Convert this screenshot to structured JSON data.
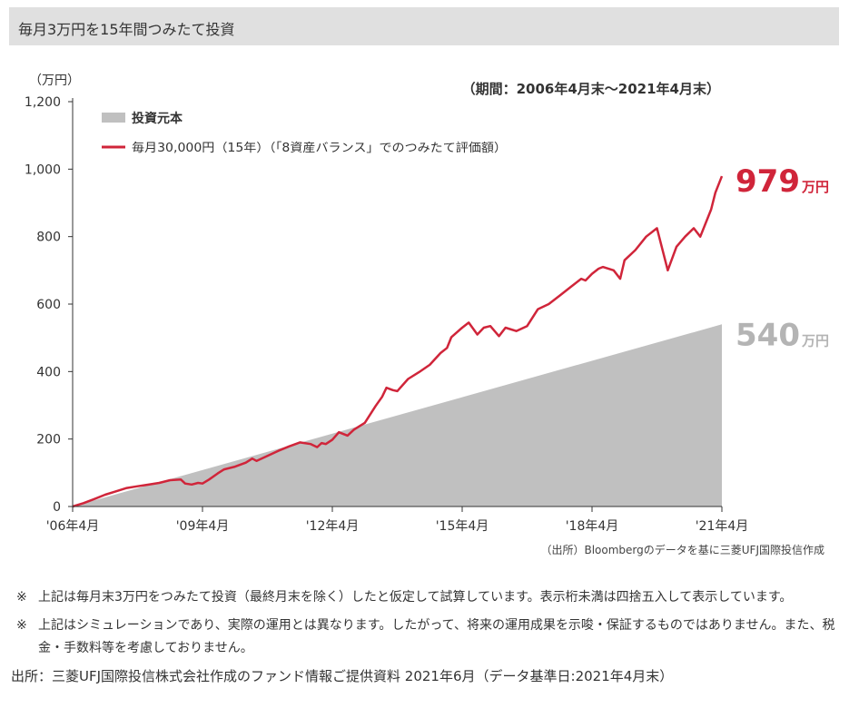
{
  "title": "毎月3万円を15年間つみたて投資",
  "chart_data": {
    "type": "area",
    "y_unit_label": "（万円）",
    "period_note": "（期間：2006年4月末～2021年4月末）",
    "ylim": [
      0,
      1200
    ],
    "yticks": [
      "0",
      "200",
      "400",
      "600",
      "800",
      "1,000",
      "1,200"
    ],
    "ytick_values": [
      0,
      200,
      400,
      600,
      800,
      1000,
      1200
    ],
    "xlim": [
      2006.25,
      2021.25
    ],
    "xticks": [
      "'06年4月",
      "'09年4月",
      "'12年4月",
      "'15年4月",
      "'18年4月",
      "'21年4月"
    ],
    "xtick_values": [
      2006.25,
      2009.25,
      2012.25,
      2015.25,
      2018.25,
      2021.25
    ],
    "grid": false,
    "legend_position": "top-left",
    "series": [
      {
        "name": "投資元本",
        "kind": "area",
        "color": "#c0c0c0",
        "x": [
          2006.25,
          2021.25
        ],
        "y": [
          0,
          540
        ]
      },
      {
        "name": "毎月30,000円（15年）（「8資産バランス」でのつみたて評価額）",
        "kind": "line",
        "color": "#d0253a",
        "x": [
          2006.25,
          2006.5,
          2006.75,
          2007.0,
          2007.25,
          2007.5,
          2007.75,
          2007.9,
          2008.1,
          2008.25,
          2008.5,
          2008.75,
          2008.85,
          2009.0,
          2009.15,
          2009.25,
          2009.4,
          2009.6,
          2009.75,
          2010.0,
          2010.25,
          2010.4,
          2010.5,
          2010.75,
          2011.0,
          2011.25,
          2011.5,
          2011.75,
          2011.9,
          2012.0,
          2012.1,
          2012.25,
          2012.4,
          2012.6,
          2012.75,
          2013.0,
          2013.25,
          2013.4,
          2013.5,
          2013.65,
          2013.75,
          2014.0,
          2014.25,
          2014.5,
          2014.75,
          2014.9,
          2015.0,
          2015.25,
          2015.4,
          2015.6,
          2015.75,
          2015.9,
          2016.1,
          2016.25,
          2016.5,
          2016.75,
          2017.0,
          2017.25,
          2017.5,
          2017.75,
          2018.0,
          2018.1,
          2018.25,
          2018.4,
          2018.5,
          2018.75,
          2018.9,
          2019.0,
          2019.25,
          2019.5,
          2019.75,
          2020.0,
          2020.1,
          2020.2,
          2020.4,
          2020.6,
          2020.75,
          2021.0,
          2021.1,
          2021.25
        ],
        "y": [
          0,
          10,
          22,
          35,
          45,
          55,
          60,
          63,
          67,
          70,
          78,
          80,
          68,
          65,
          70,
          68,
          80,
          98,
          110,
          118,
          130,
          142,
          135,
          150,
          165,
          178,
          190,
          185,
          176,
          188,
          185,
          198,
          220,
          210,
          228,
          248,
          298,
          325,
          352,
          345,
          342,
          378,
          398,
          420,
          455,
          470,
          502,
          530,
          545,
          510,
          530,
          535,
          505,
          530,
          520,
          535,
          585,
          600,
          625,
          650,
          675,
          670,
          690,
          705,
          710,
          700,
          675,
          730,
          760,
          800,
          825,
          700,
          735,
          770,
          800,
          825,
          800,
          880,
          930,
          979
        ]
      }
    ],
    "end_labels": [
      {
        "value": "979",
        "unit": "万円",
        "color": "#d0253a"
      },
      {
        "value": "540",
        "unit": "万円",
        "color": "#b4b4b4"
      }
    ],
    "source_note": "（出所）Bloombergのデータを基に三菱UFJ国際投信作成"
  },
  "notes": [
    {
      "mark": "※",
      "text": "上記は毎月末3万円をつみたて投資（最終月末を除く）したと仮定して試算しています。表示桁未満は四捨五入して表示しています。"
    },
    {
      "mark": "※",
      "text": "上記はシミュレーションであり、実際の運用とは異なります。したがって、将来の運用成果を示唆・保証するものではありません。また、税金・手数料等を考慮しておりません。"
    }
  ],
  "source": "出所：三菱UFJ国際投信株式会社作成のファンド情報ご提供資料 2021年6月（データ基準日:2021年4月末）"
}
